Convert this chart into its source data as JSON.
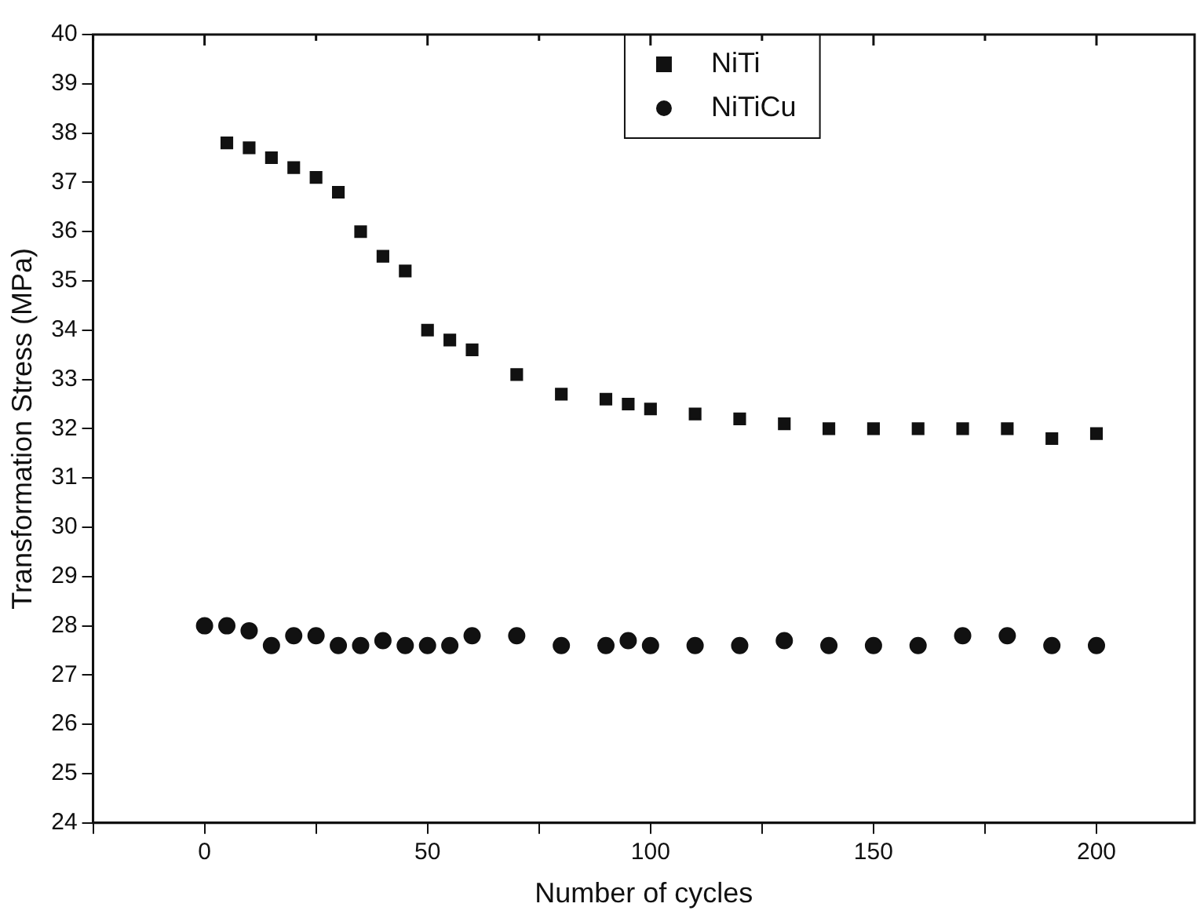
{
  "chart_data": {
    "type": "scatter",
    "xlabel": "Number of cycles",
    "ylabel": "Transformation Stress (MPa)",
    "xlim": [
      -25,
      222
    ],
    "xticks": [
      {
        "value": -25,
        "label": null
      },
      0,
      {
        "value": 25,
        "label": null
      },
      50,
      {
        "value": 75,
        "label": null
      },
      100,
      {
        "value": 125,
        "label": null
      },
      150,
      {
        "value": 175,
        "label": null
      },
      200
    ],
    "ylim": [
      24,
      40
    ],
    "yticks": [
      24,
      25,
      26,
      27,
      28,
      29,
      30,
      31,
      32,
      33,
      34,
      35,
      36,
      37,
      38,
      39,
      40
    ],
    "grid": false,
    "legend": "top",
    "series": [
      {
        "name": "NiTi",
        "color": "#111111",
        "marker": "square",
        "x": [
          5,
          10,
          15,
          20,
          25,
          30,
          35,
          40,
          45,
          50,
          55,
          60,
          70,
          80,
          90,
          95,
          100,
          110,
          120,
          130,
          140,
          150,
          160,
          170,
          180,
          190,
          200
        ],
        "values": [
          37.8,
          37.7,
          37.5,
          37.3,
          37.1,
          36.8,
          36.0,
          35.5,
          35.2,
          34.0,
          33.8,
          33.6,
          33.1,
          32.7,
          32.6,
          32.5,
          32.4,
          32.3,
          32.2,
          32.1,
          32.0,
          32.0,
          32.0,
          32.0,
          32.0,
          31.8,
          31.9
        ]
      },
      {
        "name": "NiTiCu",
        "color": "#111111",
        "marker": "circle",
        "x": [
          0,
          5,
          10,
          15,
          20,
          25,
          30,
          35,
          40,
          45,
          50,
          55,
          60,
          70,
          80,
          90,
          95,
          100,
          110,
          120,
          130,
          140,
          150,
          160,
          170,
          180,
          190,
          200
        ],
        "values": [
          28.0,
          28.0,
          27.9,
          27.6,
          27.8,
          27.8,
          27.6,
          27.6,
          27.7,
          27.6,
          27.6,
          27.6,
          27.8,
          27.8,
          27.6,
          27.6,
          27.7,
          27.6,
          27.6,
          27.6,
          27.7,
          27.6,
          27.6,
          27.6,
          27.8,
          27.8,
          27.6,
          27.6
        ]
      }
    ]
  }
}
